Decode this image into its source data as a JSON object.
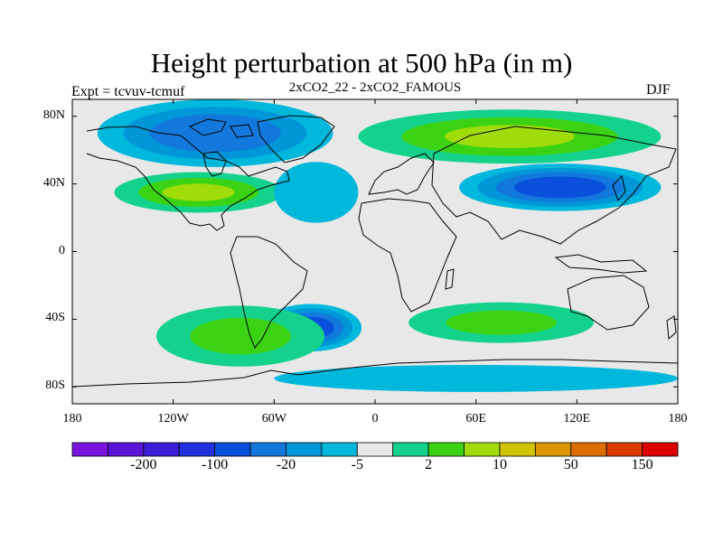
{
  "title": "Height perturbation at 500 hPa (in m)",
  "subtitle": "2xCO2_22 - 2xCO2_FAMOUS",
  "experiment": "Expt = tcvuv-tcmuf",
  "season": "DJF",
  "map": {
    "projection": "cylindrical equidistant",
    "lon_range": [
      -180,
      180
    ],
    "lat_range": [
      -90,
      90
    ],
    "background_color": "#e8e8e8"
  },
  "lat_ticks": [
    {
      "label": "80N",
      "lat": 80
    },
    {
      "label": "40N",
      "lat": 40
    },
    {
      "label": "0",
      "lat": 0
    },
    {
      "label": "40S",
      "lat": -40
    },
    {
      "label": "80S",
      "lat": -80
    }
  ],
  "lon_ticks": [
    {
      "label": "180",
      "lon": -180
    },
    {
      "label": "120W",
      "lon": -120
    },
    {
      "label": "60W",
      "lon": -60
    },
    {
      "label": "0",
      "lon": 0
    },
    {
      "label": "60E",
      "lon": 60
    },
    {
      "label": "120E",
      "lon": 120
    },
    {
      "label": "180",
      "lon": 180
    }
  ],
  "colorbar": {
    "colors": [
      "#7a14dc",
      "#5a14d8",
      "#3d1ed8",
      "#2030dc",
      "#0a50dc",
      "#1278dc",
      "#0096d8",
      "#00b8dc",
      "#e8e8e8",
      "#14d28c",
      "#3cd214",
      "#a0dc0a",
      "#d2c300",
      "#dc9600",
      "#dc6e00",
      "#dc3c00",
      "#dc0000"
    ],
    "labels": [
      {
        "text": "-200",
        "after_index": 1
      },
      {
        "text": "-100",
        "after_index": 3
      },
      {
        "text": "-20",
        "after_index": 5
      },
      {
        "text": "-5",
        "after_index": 7
      },
      {
        "text": "2",
        "after_index": 9
      },
      {
        "text": "10",
        "after_index": 11
      },
      {
        "text": "50",
        "after_index": 13
      },
      {
        "text": "150",
        "after_index": 15
      }
    ]
  },
  "fields": [
    {
      "name": "arctic-negative-anomaly",
      "lon": -95,
      "lat": 70,
      "rx": 70,
      "ry": 20,
      "level": -4,
      "color_index": 5
    },
    {
      "name": "north-america-positive-anomaly",
      "lon": -105,
      "lat": 35,
      "rx": 50,
      "ry": 12,
      "level": 3,
      "color_index": 11
    },
    {
      "name": "north-atlantic-negative-anomaly",
      "lon": -35,
      "lat": 35,
      "rx": 25,
      "ry": 18,
      "level": -2,
      "color_index": 7
    },
    {
      "name": "eurasia-positive-anomaly",
      "lon": 80,
      "lat": 68,
      "rx": 90,
      "ry": 16,
      "level": 3,
      "color_index": 11
    },
    {
      "name": "north-pacific-negative-anomaly",
      "lon": 110,
      "lat": 38,
      "rx": 60,
      "ry": 14,
      "level": -5,
      "color_index": 4
    },
    {
      "name": "south-atlantic-negative-anomaly",
      "lon": -38,
      "lat": -45,
      "rx": 30,
      "ry": 14,
      "level": -5,
      "color_index": 4
    },
    {
      "name": "south-pacific-positive-anomaly",
      "lon": -80,
      "lat": -50,
      "rx": 50,
      "ry": 18,
      "level": 2,
      "color_index": 10
    },
    {
      "name": "indian-ocean-positive-anomaly",
      "lon": 75,
      "lat": -42,
      "rx": 55,
      "ry": 12,
      "level": 2,
      "color_index": 10
    },
    {
      "name": "antarctic-negative-anomaly",
      "lon": 60,
      "lat": -75,
      "rx": 120,
      "ry": 8,
      "level": -3,
      "color_index": 7
    }
  ]
}
